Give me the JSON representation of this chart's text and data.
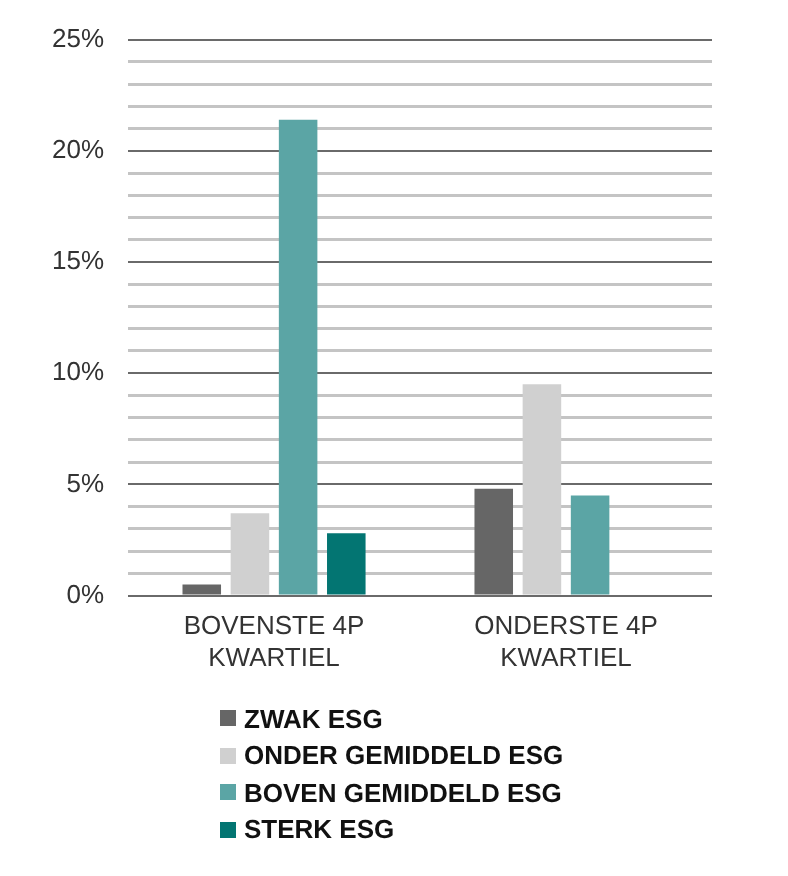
{
  "chart_data": {
    "type": "bar",
    "categories": [
      "BOVENSTE 4P KWARTIEL",
      "ONDERSTE 4P KWARTIEL"
    ],
    "series": [
      {
        "name": "ZWAK ESG",
        "color": "#666666",
        "values": [
          0.5,
          4.8
        ]
      },
      {
        "name": "ONDER GEMIDDELD ESG",
        "color": "#d0d0d0",
        "values": [
          3.7,
          9.5
        ]
      },
      {
        "name": "BOVEN GEMIDDELD ESG",
        "color": "#5ba5a5",
        "values": [
          21.4,
          4.5
        ]
      },
      {
        "name": "STERK ESG",
        "color": "#037572",
        "values": [
          2.8,
          null
        ]
      }
    ],
    "ylim": [
      0,
      25
    ],
    "yticks": [
      {
        "value": 0,
        "label": "0%"
      },
      {
        "value": 1,
        "label": null
      },
      {
        "value": 2,
        "label": null
      },
      {
        "value": 3,
        "label": null
      },
      {
        "value": 4,
        "label": null
      },
      {
        "value": 5,
        "label": "5%"
      },
      {
        "value": 6,
        "label": null
      },
      {
        "value": 7,
        "label": null
      },
      {
        "value": 8,
        "label": null
      },
      {
        "value": 9,
        "label": null
      },
      {
        "value": 10,
        "label": "10%"
      },
      {
        "value": 11,
        "label": null
      },
      {
        "value": 12,
        "label": null
      },
      {
        "value": 13,
        "label": null
      },
      {
        "value": 14,
        "label": null
      },
      {
        "value": 15,
        "label": "15%"
      },
      {
        "value": 16,
        "label": null
      },
      {
        "value": 17,
        "label": null
      },
      {
        "value": 18,
        "label": null
      },
      {
        "value": 19,
        "label": null
      },
      {
        "value": 20,
        "label": "20%"
      },
      {
        "value": 21,
        "label": null
      },
      {
        "value": 22,
        "label": null
      },
      {
        "value": 23,
        "label": null
      },
      {
        "value": 24,
        "label": null
      },
      {
        "value": 25,
        "label": "25%"
      }
    ],
    "grid": "y",
    "legend": "bottom"
  }
}
